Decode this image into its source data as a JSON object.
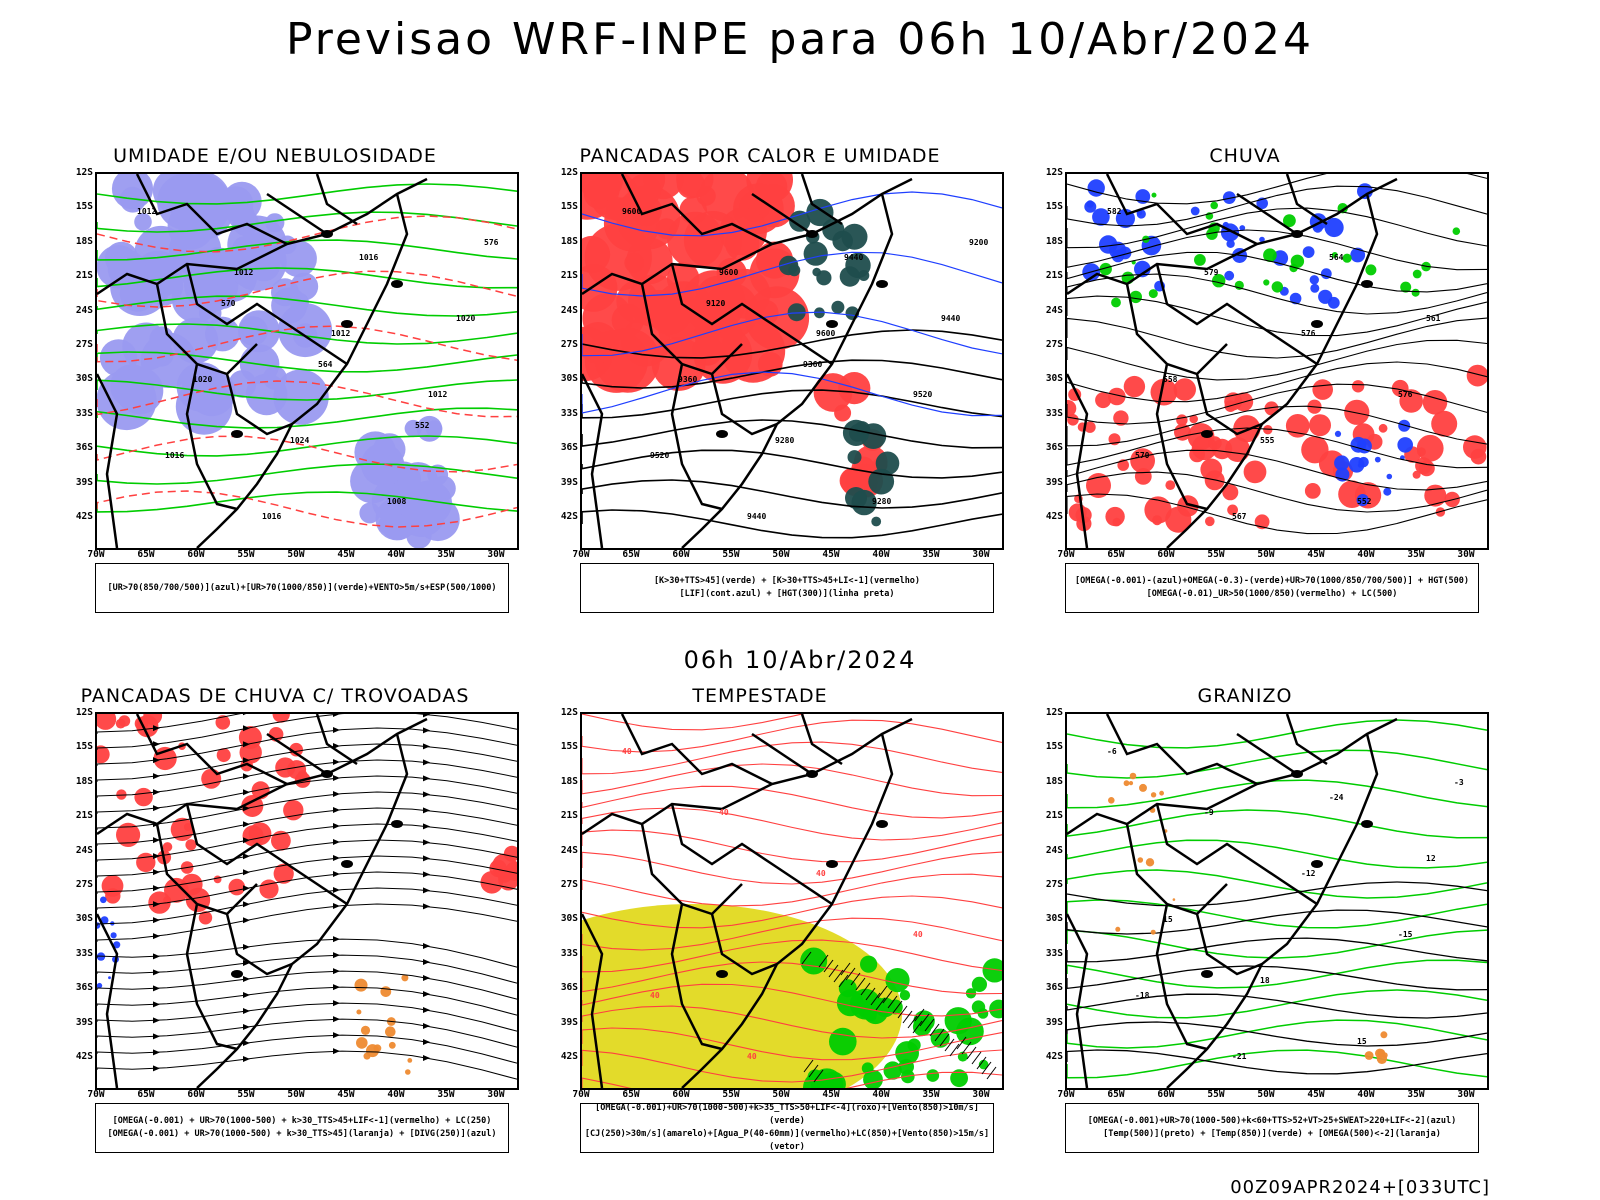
{
  "title": "Previsao WRF-INPE  para 06h 10/Abr/2024",
  "mid_title": "06h 10/Abr/2024",
  "footer": "00Z09APR2024+[033UTC]",
  "lat_labels": [
    "12S",
    "15S",
    "18S",
    "21S",
    "24S",
    "27S",
    "30S",
    "33S",
    "36S",
    "39S",
    "42S"
  ],
  "lon_labels": [
    "70W",
    "65W",
    "60W",
    "55W",
    "50W",
    "45W",
    "40W",
    "35W",
    "30W"
  ],
  "colors": {
    "blue_fill": "#9a9af0",
    "green": "#00cc00",
    "red": "#ff4040",
    "dark_teal": "#1f4d4d",
    "yellow": "#e3db2a",
    "orange": "#ee8a30",
    "blue": "#1f3fff"
  },
  "panels": [
    {
      "title": "UMIDADE E/OU NEBULOSIDADE",
      "legend": [
        "[UR>70(850/700/500)](azul)+[UR>70(1000/850)](verde)+VENTO>5m/s+ESP(500/1000)"
      ],
      "contour_labels": [
        "1012",
        "1012",
        "1012",
        "1012",
        "1016",
        "1016",
        "1016",
        "1020",
        "1020",
        "1024",
        "1008",
        "576",
        "570",
        "564",
        "552"
      ]
    },
    {
      "title": "PANCADAS POR CALOR E UMIDADE",
      "legend": [
        "[K>30+TTS>45](verde) + [K>30+TTS>45+LI<-1](vermelho)",
        "[LIF](cont.azul) + [HGT(300)](linha preta)"
      ],
      "contour_labels": [
        "9600",
        "9600",
        "9600",
        "9520",
        "9520",
        "9440",
        "9440",
        "9440",
        "9360",
        "9280",
        "9280",
        "9200",
        "9120",
        "9360"
      ]
    },
    {
      "title": "CHUVA",
      "legend": [
        "[OMEGA(-0.001)-(azul)+OMEGA(-0.3)-(verde)+UR>70(1000/850/700/500)] + HGT(500)",
        "[OMEGA(-0.01)_UR>50(1000/850)(vermelho) + LC(500)"
      ],
      "contour_labels": [
        "582",
        "579",
        "576",
        "576",
        "570",
        "567",
        "564",
        "561",
        "558",
        "555",
        "552"
      ]
    },
    {
      "title": "PANCADAS DE CHUVA C/ TROVOADAS",
      "legend": [
        "[OMEGA(-0.001) + UR>70(1000-500) + k>30_TTS>45+LIF<-1](vermelho) + LC(250)",
        "[OMEGA(-0.001) + UR>70(1000-500) + k>30_TTS>45](laranja) + [DIVG(250)](azul)"
      ],
      "contour_labels": []
    },
    {
      "title": "TEMPESTADE",
      "legend": [
        "[OMEGA(-0.001)+UR>70(1000-500)+k>35_TTS>50+LIF<-4](roxo)+[Vento(850)>10m/s](verde)",
        "[CJ(250)>30m/s](amarelo)+[Agua_P(40-60mm)](vermelho)+LC(850)+[Vento(850)>15m/s](vetor)"
      ],
      "contour_labels": [
        "40",
        "40",
        "40",
        "40",
        "40",
        "40"
      ]
    },
    {
      "title": "GRANIZO",
      "legend": [
        "[OMEGA(-0.001)+UR>70(1000-500)+k<60+TTS>52+VT>25+SWEAT>220+LIF<-2](azul)",
        "[Temp(500)](preto) + [Temp(850)](verde) + [OMEGA(500)<-2](laranja)"
      ],
      "contour_labels": [
        "-6",
        "-9",
        "-12",
        "-15",
        "-18",
        "-21",
        "-24",
        "12",
        "15",
        "18",
        "15",
        "-3"
      ]
    }
  ]
}
